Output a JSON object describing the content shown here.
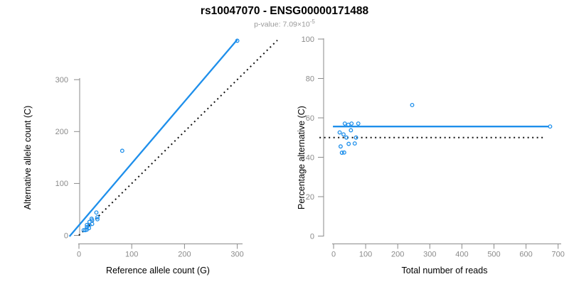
{
  "header": {
    "title": "rs10047070 - ENSG00000171488",
    "pvalue_prefix": "p-value: ",
    "pvalue_mantissa": "7.09×10",
    "pvalue_exponent": "-5"
  },
  "colors": {
    "accent_blue": "#1e8feb",
    "axis_gray": "#8a8a8a",
    "tick_label_gray": "#8a8a8a",
    "dotted_line_black": "#111111",
    "title_black": "#000000",
    "subtitle_gray": "#9a9a9a"
  },
  "chart_data": [
    {
      "type": "scatter",
      "title": "rs10047070 - ENSG00000171488",
      "xlabel": "Reference allele count (G)",
      "ylabel": "Alternative allele count (C)",
      "xticks": [
        0,
        100,
        200,
        300
      ],
      "yticks": [
        0,
        100,
        200,
        300
      ],
      "xlim": [
        -19,
        376
      ],
      "ylim": [
        -5,
        382
      ],
      "grid": false,
      "points": [
        [
          15,
          20
        ],
        [
          20,
          26
        ],
        [
          24,
          32
        ],
        [
          33,
          44
        ],
        [
          9,
          10
        ],
        [
          25,
          29
        ],
        [
          15,
          16
        ],
        [
          20,
          20
        ],
        [
          35,
          35
        ],
        [
          25,
          22
        ],
        [
          35,
          31
        ],
        [
          12,
          10
        ],
        [
          15,
          11
        ],
        [
          19,
          14
        ],
        [
          82,
          163
        ],
        [
          300,
          375
        ]
      ],
      "lines": [
        {
          "kind": "identity-line",
          "style": "dotted",
          "x1": 0,
          "y1": 0,
          "x2": 376,
          "y2": 376
        },
        {
          "kind": "fit-line",
          "style": "solid",
          "x1": -18,
          "y1": -2,
          "x2": 300,
          "y2": 377
        }
      ]
    },
    {
      "type": "scatter",
      "title": "rs10047070 - ENSG00000171488",
      "xlabel": "Total number of reads",
      "ylabel": "Percentage alternative (C)",
      "xticks": [
        0,
        100,
        200,
        300,
        400,
        500,
        600,
        700
      ],
      "yticks": [
        0,
        20,
        40,
        60,
        80,
        100
      ],
      "xlim": [
        -45,
        730
      ],
      "ylim": [
        0,
        100
      ],
      "grid": false,
      "points": [
        [
          35,
          57.1
        ],
        [
          46,
          56.5
        ],
        [
          56,
          57.1
        ],
        [
          77,
          57.1
        ],
        [
          19,
          52.6
        ],
        [
          54,
          53.7
        ],
        [
          31,
          51.6
        ],
        [
          40,
          50.0
        ],
        [
          70,
          50.0
        ],
        [
          47,
          46.8
        ],
        [
          66,
          47.0
        ],
        [
          22,
          45.5
        ],
        [
          26,
          42.3
        ],
        [
          33,
          42.4
        ],
        [
          245,
          66.5
        ],
        [
          675,
          55.6
        ]
      ],
      "lines": [
        {
          "kind": "null-line",
          "style": "dotted",
          "x1": -44,
          "y1": 50,
          "x2": 654,
          "y2": 50
        },
        {
          "kind": "mean-line",
          "style": "solid",
          "x1": -2,
          "y1": 55.6,
          "x2": 671,
          "y2": 55.6
        }
      ]
    }
  ]
}
